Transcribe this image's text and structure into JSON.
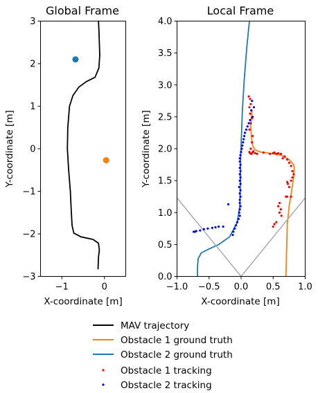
{
  "legend": {
    "placement": "bottom-center",
    "entries": [
      {
        "label": "MAV trajectory",
        "color": "#000000",
        "kind": "line"
      },
      {
        "label": "Obstacle 1 ground truth",
        "color": "#ff7f0e",
        "kind": "line"
      },
      {
        "label": "Obstacle 2 ground truth",
        "color": "#1f77b4",
        "kind": "line"
      },
      {
        "label": "Obstacle 1 tracking",
        "color": "#ff0000",
        "kind": "points"
      },
      {
        "label": "Obstacle 2 tracking",
        "color": "#0000ff",
        "kind": "points"
      }
    ]
  },
  "chart_data": [
    {
      "type": "line",
      "title": "Global Frame",
      "xlabel": "X-coordinate [m]",
      "ylabel": "Y-coordinate [m]",
      "xlim": [
        -1.5,
        0.5
      ],
      "ylim": [
        -3,
        3
      ],
      "xticks": [
        -1,
        0
      ],
      "xtick_labels": [
        "−1",
        "0"
      ],
      "yticks": [
        -3,
        -2,
        -1,
        0,
        1,
        2,
        3
      ],
      "ytick_labels": [
        "−3",
        "−2",
        "−1",
        "0",
        "1",
        "2",
        "3"
      ],
      "grid": false,
      "series": [
        {
          "name": "MAV trajectory",
          "kind": "line",
          "color": "#000000",
          "x": [
            -0.15,
            -0.14,
            -0.12,
            -0.14,
            -0.27,
            -0.55,
            -0.72,
            -0.76,
            -0.78,
            -0.8,
            -0.84,
            -0.87,
            -0.86,
            -0.82,
            -0.74,
            -0.6,
            -0.42,
            -0.22,
            -0.13,
            -0.11,
            -0.12,
            -0.13,
            -0.14
          ],
          "y": [
            -2.82,
            -2.55,
            -2.38,
            -2.22,
            -2.13,
            -2.07,
            -1.98,
            -1.8,
            -1.43,
            -1.0,
            -0.5,
            0.0,
            0.5,
            1.0,
            1.25,
            1.45,
            1.58,
            1.68,
            1.9,
            2.2,
            2.5,
            2.8,
            3.0
          ]
        },
        {
          "name": "Obstacle 2 position",
          "kind": "point",
          "color": "#1f77b4",
          "x": [
            -0.68
          ],
          "y": [
            2.1
          ]
        },
        {
          "name": "Obstacle 1 position",
          "kind": "point",
          "color": "#ff7f0e",
          "x": [
            0.04
          ],
          "y": [
            -0.27
          ]
        }
      ]
    },
    {
      "type": "scatter",
      "title": "Local Frame",
      "xlabel": "X-coordinate [m]",
      "ylabel": "Y-coordinate [m]",
      "xlim": [
        -1.0,
        1.0
      ],
      "ylim": [
        0.0,
        4.0
      ],
      "xticks": [
        -1.0,
        -0.5,
        0.0,
        0.5,
        1.0
      ],
      "xtick_labels": [
        "−1.0",
        "−0.5",
        "0.0",
        "0.5",
        "1.0"
      ],
      "yticks": [
        0.0,
        0.5,
        1.0,
        1.5,
        2.0,
        2.5,
        3.0,
        3.5,
        4.0
      ],
      "ytick_labels": [
        "0.0",
        "0.5",
        "1.0",
        "1.5",
        "2.0",
        "2.5",
        "3.0",
        "3.5",
        "4.0"
      ],
      "grid": false,
      "series": [
        {
          "name": "Obstacle 2 ground truth",
          "kind": "line",
          "color": "#1f77b4",
          "x": [
            -0.68,
            -0.68,
            -0.67,
            -0.62,
            -0.5,
            -0.35,
            -0.18,
            -0.06,
            -0.02,
            -0.01,
            -0.01,
            0.0,
            0.02,
            0.05,
            0.09,
            0.13
          ],
          "y": [
            0.0,
            0.15,
            0.28,
            0.37,
            0.43,
            0.5,
            0.62,
            0.85,
            1.1,
            1.5,
            1.8,
            2.05,
            2.6,
            3.1,
            3.6,
            4.0
          ]
        },
        {
          "name": "Obstacle 1 ground truth",
          "kind": "line",
          "color": "#ff7f0e",
          "x": [
            0.7,
            0.71,
            0.72,
            0.75,
            0.79,
            0.82,
            0.83,
            0.82,
            0.75,
            0.62,
            0.45,
            0.3,
            0.22,
            0.18,
            0.16,
            0.15,
            0.16,
            0.17
          ],
          "y": [
            0.0,
            0.4,
            0.8,
            1.1,
            1.35,
            1.55,
            1.7,
            1.75,
            1.83,
            1.9,
            1.93,
            1.95,
            1.98,
            2.05,
            2.2,
            2.35,
            2.5,
            2.58
          ]
        },
        {
          "name": "Field of view left",
          "kind": "line",
          "color": "#aaaaaa",
          "x": [
            -1.0,
            0.0
          ],
          "y": [
            1.23,
            0.0
          ]
        },
        {
          "name": "Field of view right",
          "kind": "line",
          "color": "#aaaaaa",
          "x": [
            0.0,
            1.0
          ],
          "y": [
            0.0,
            1.23
          ]
        },
        {
          "name": "Obstacle 1 tracking",
          "kind": "points",
          "color": "#ff0000",
          "x": [
            0.12,
            0.14,
            0.15,
            0.13,
            0.16,
            0.14,
            0.17,
            0.15,
            0.13,
            0.18,
            0.17,
            0.15,
            0.19,
            0.13,
            0.14,
            0.16,
            0.18,
            0.22,
            0.25,
            0.35,
            0.45,
            0.5,
            0.52,
            0.55,
            0.58,
            0.62,
            0.65,
            0.68,
            0.72,
            0.75,
            0.78,
            0.8,
            0.82,
            0.8,
            0.78,
            0.72,
            0.73,
            0.75,
            0.7,
            0.72,
            0.78,
            0.6,
            0.58,
            0.62,
            0.6,
            0.63,
            0.55,
            0.52,
            0.5
          ],
          "y": [
            2.82,
            2.78,
            2.7,
            2.65,
            2.6,
            2.55,
            2.48,
            2.4,
            2.3,
            2.2,
            2.1,
            2.0,
            1.96,
            1.95,
            1.93,
            1.92,
            1.94,
            1.93,
            1.92,
            1.94,
            1.92,
            1.93,
            1.94,
            1.92,
            1.93,
            1.92,
            1.85,
            1.88,
            1.83,
            1.78,
            1.73,
            1.65,
            1.6,
            1.55,
            1.5,
            1.48,
            1.45,
            1.4,
            1.25,
            1.25,
            1.25,
            1.15,
            1.1,
            1.05,
            1.0,
            0.95,
            0.85,
            0.82,
            0.78
          ]
        },
        {
          "name": "Obstacle 2 tracking",
          "kind": "points",
          "color": "#0000ff",
          "x": [
            0.17,
            0.2,
            0.16,
            0.18,
            0.14,
            0.12,
            0.1,
            0.08,
            0.06,
            0.05,
            0.04,
            0.03,
            0.02,
            0.01,
            0.0,
            -0.01,
            -0.02,
            -0.02,
            -0.01,
            -0.02,
            -0.01,
            -0.02,
            -0.01,
            -0.02,
            -0.01,
            -0.03,
            -0.01,
            -0.02,
            -0.01,
            -0.02,
            -0.02,
            -0.01,
            -0.02,
            -0.03,
            -0.02,
            -0.04,
            -0.06,
            -0.08,
            -0.1,
            -0.12,
            -0.13,
            -0.2,
            -0.28,
            -0.35,
            -0.4,
            -0.45,
            -0.52,
            -0.58,
            -0.64,
            -0.7,
            -0.74,
            -0.72
          ],
          "y": [
            2.75,
            2.65,
            2.6,
            2.5,
            2.45,
            2.4,
            2.35,
            2.3,
            2.25,
            2.2,
            2.15,
            2.1,
            2.05,
            2.0,
            1.95,
            1.9,
            1.85,
            1.8,
            1.75,
            1.7,
            1.65,
            1.6,
            1.55,
            1.5,
            1.45,
            1.4,
            1.35,
            1.3,
            1.25,
            1.2,
            1.15,
            1.1,
            1.05,
            1.0,
            0.95,
            0.9,
            0.85,
            0.8,
            0.75,
            0.7,
            0.65,
            1.13,
            0.78,
            0.78,
            0.77,
            0.76,
            0.75,
            0.74,
            0.72,
            0.71,
            0.7,
            0.7
          ]
        }
      ]
    }
  ]
}
